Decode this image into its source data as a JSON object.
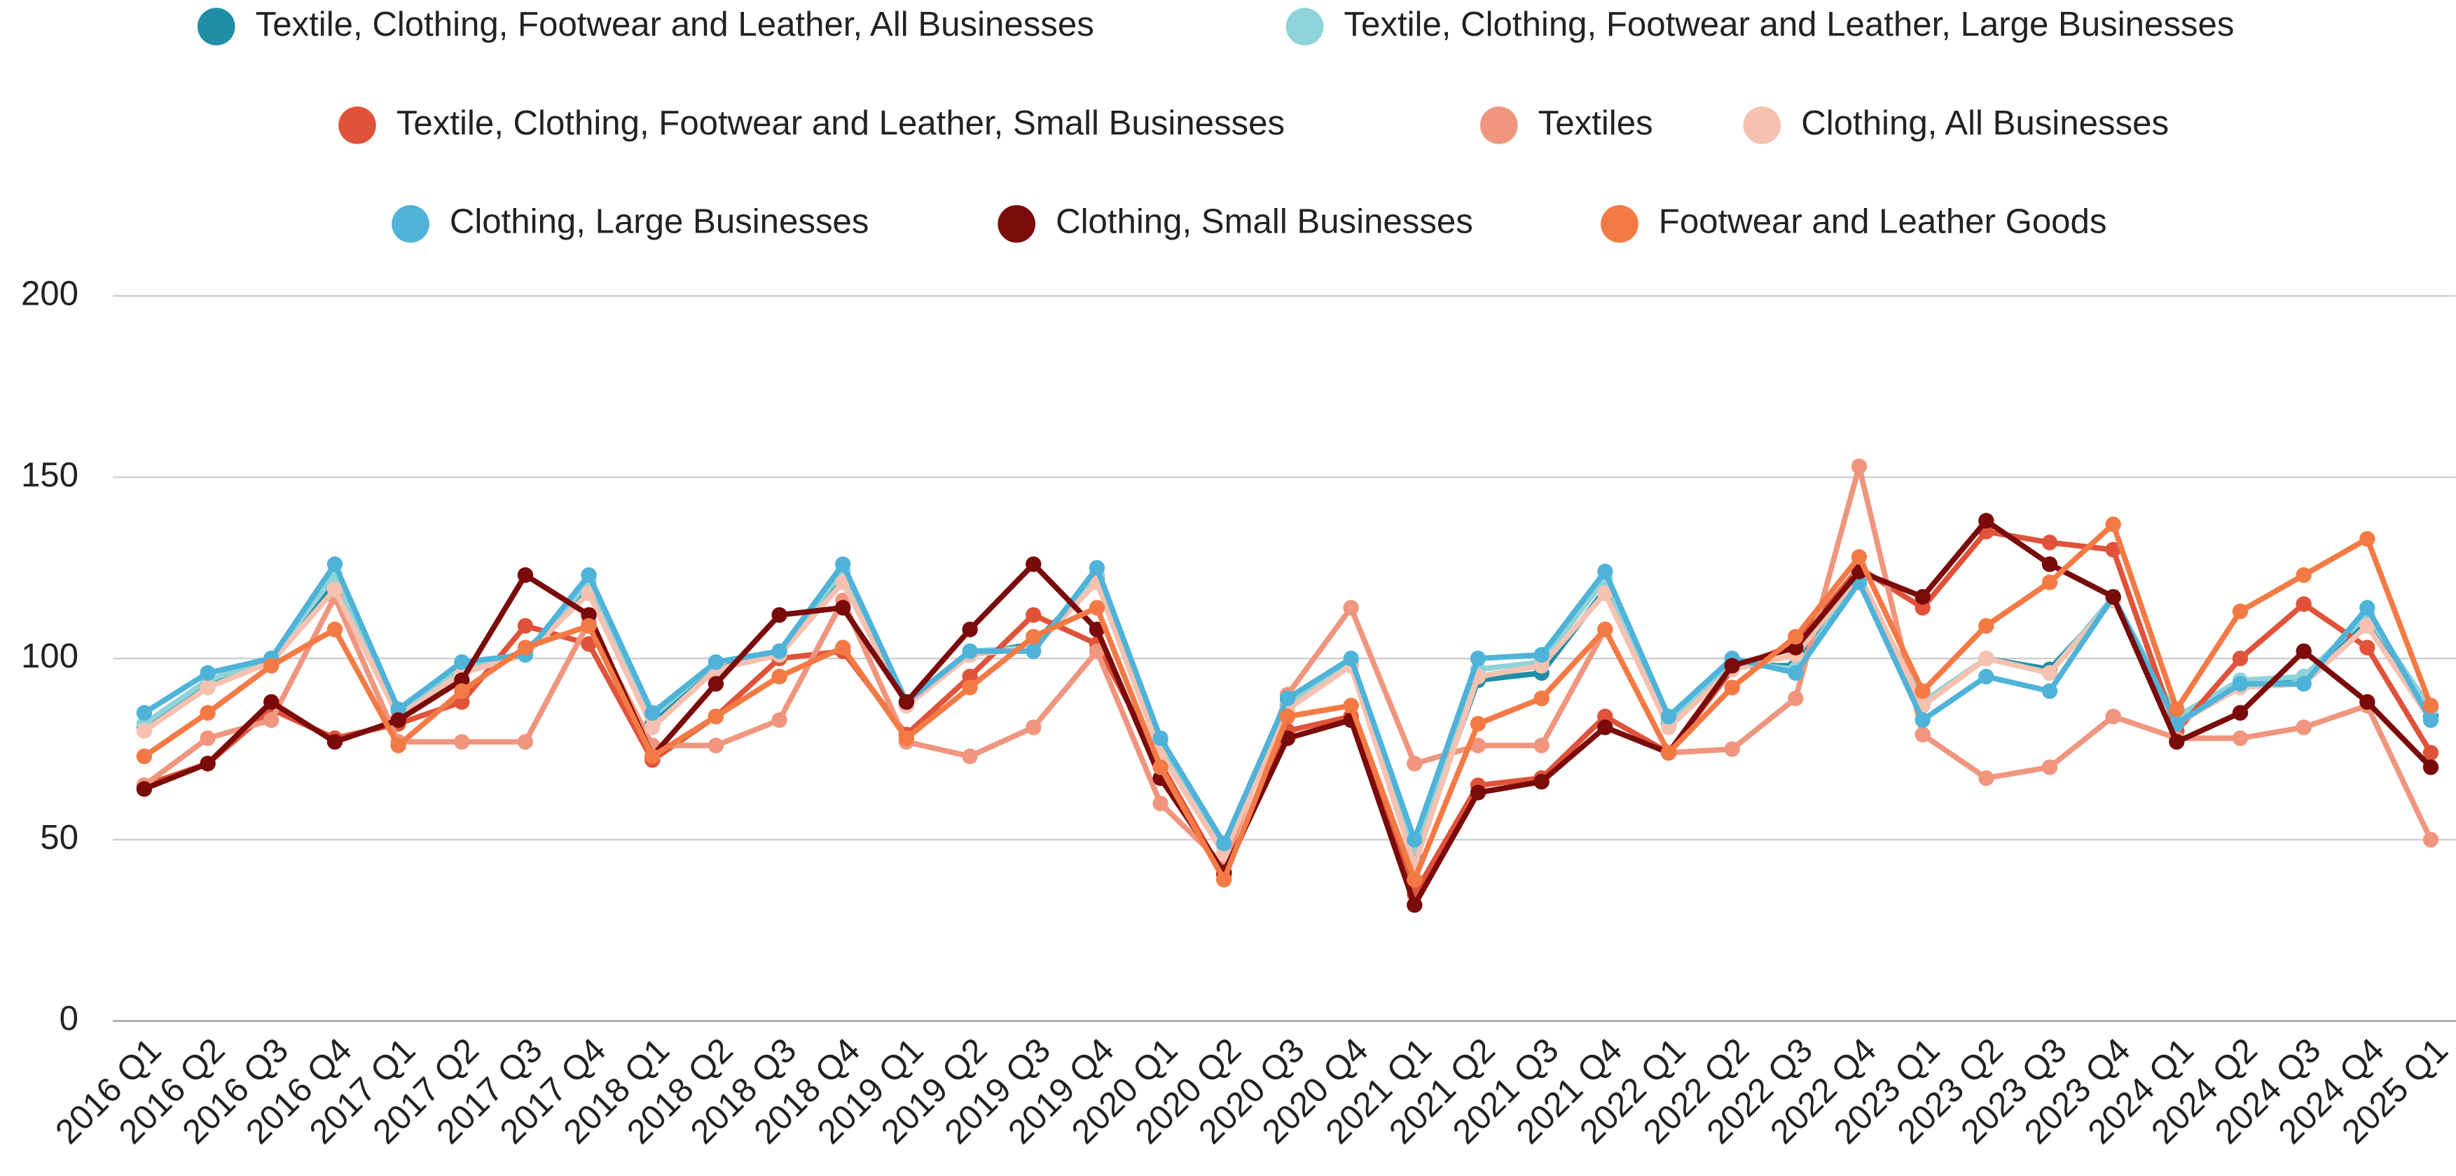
{
  "chart_data": {
    "type": "line",
    "categories": [
      "2016 Q1",
      "2016 Q2",
      "2016 Q3",
      "2016 Q4",
      "2017 Q1",
      "2017 Q2",
      "2017 Q3",
      "2017 Q4",
      "2018 Q1",
      "2018 Q2",
      "2018 Q3",
      "2018 Q4",
      "2019 Q1",
      "2019 Q2",
      "2019 Q3",
      "2019 Q4",
      "2020 Q1",
      "2020 Q2",
      "2020 Q3",
      "2020 Q4",
      "2021 Q1",
      "2021 Q2",
      "2021 Q3",
      "2021 Q4",
      "2022 Q1",
      "2022 Q2",
      "2022 Q3",
      "2022 Q4",
      "2023 Q1",
      "2023 Q2",
      "2023 Q3",
      "2023 Q4",
      "2024 Q1",
      "2024 Q2",
      "2024 Q3",
      "2024 Q4",
      "2025 Q1"
    ],
    "series": [
      {
        "name": "Textile, Clothing, Footwear and Leather, All Businesses",
        "color": "#1f8ea6",
        "values": [
          81,
          93,
          99,
          121,
          84,
          96,
          102,
          119,
          82,
          97,
          102,
          122,
          87,
          101,
          104,
          122,
          75,
          46,
          87,
          98,
          45,
          94,
          96,
          119,
          82,
          98,
          98,
          123,
          87,
          100,
          97,
          116,
          83,
          93,
          95,
          111,
          84
        ]
      },
      {
        "name": "Textile, Clothing, Footwear and Leather, Large Businesses",
        "color": "#8ed3d9",
        "values": [
          82,
          94,
          100,
          123,
          85,
          98,
          101,
          121,
          84,
          99,
          102,
          124,
          88,
          102,
          103,
          123,
          77,
          48,
          88,
          99,
          48,
          97,
          99,
          122,
          83,
          99,
          97,
          122,
          88,
          100,
          96,
          117,
          84,
          94,
          95,
          112,
          86
        ]
      },
      {
        "name": "Textile, Clothing, Footwear and Leather, Small Businesses",
        "color": "#e0533a",
        "values": [
          65,
          71,
          86,
          78,
          82,
          88,
          109,
          104,
          72,
          84,
          100,
          102,
          79,
          95,
          112,
          104,
          71,
          40,
          80,
          84,
          35,
          65,
          67,
          84,
          74,
          97,
          104,
          125,
          114,
          135,
          132,
          130,
          80,
          100,
          115,
          103,
          74
        ]
      },
      {
        "name": "Textiles",
        "color": "#f0957e",
        "values": [
          65,
          78,
          83,
          117,
          77,
          77,
          77,
          110,
          76,
          76,
          83,
          116,
          77,
          73,
          81,
          102,
          60,
          43,
          90,
          114,
          71,
          76,
          76,
          108,
          74,
          75,
          89,
          153,
          79,
          67,
          70,
          84,
          78,
          78,
          81,
          87,
          50
        ]
      },
      {
        "name": "Clothing, All Businesses",
        "color": "#f6c1b0",
        "values": [
          80,
          92,
          99,
          119,
          84,
          96,
          101,
          118,
          81,
          97,
          101,
          121,
          87,
          101,
          103,
          121,
          74,
          46,
          86,
          98,
          43,
          95,
          98,
          118,
          81,
          97,
          101,
          123,
          87,
          100,
          96,
          116,
          82,
          92,
          93,
          109,
          83
        ]
      },
      {
        "name": "Clothing, Large Businesses",
        "color": "#4fb3d9",
        "values": [
          85,
          96,
          100,
          126,
          86,
          99,
          101,
          123,
          85,
          99,
          102,
          126,
          88,
          102,
          102,
          125,
          78,
          49,
          89,
          100,
          50,
          100,
          101,
          124,
          84,
          100,
          96,
          121,
          83,
          95,
          91,
          117,
          82,
          93,
          93,
          114,
          83
        ]
      },
      {
        "name": "Clothing, Small Businesses",
        "color": "#7b0a0a",
        "values": [
          64,
          71,
          88,
          77,
          83,
          94,
          123,
          112,
          73,
          93,
          112,
          114,
          88,
          108,
          126,
          108,
          67,
          41,
          78,
          83,
          32,
          63,
          66,
          81,
          74,
          98,
          103,
          124,
          117,
          138,
          126,
          117,
          77,
          85,
          102,
          88,
          70
        ]
      },
      {
        "name": "Footwear and Leather Goods",
        "color": "#f47a45",
        "values": [
          73,
          85,
          98,
          108,
          76,
          91,
          103,
          109,
          73,
          84,
          95,
          103,
          78,
          92,
          106,
          114,
          70,
          39,
          84,
          87,
          39,
          82,
          89,
          108,
          74,
          92,
          106,
          128,
          91,
          109,
          121,
          137,
          86,
          113,
          123,
          133,
          87
        ]
      }
    ],
    "ylim": [
      0,
      200
    ],
    "yticks": [
      0,
      50,
      100,
      150,
      200
    ],
    "grid": true
  }
}
